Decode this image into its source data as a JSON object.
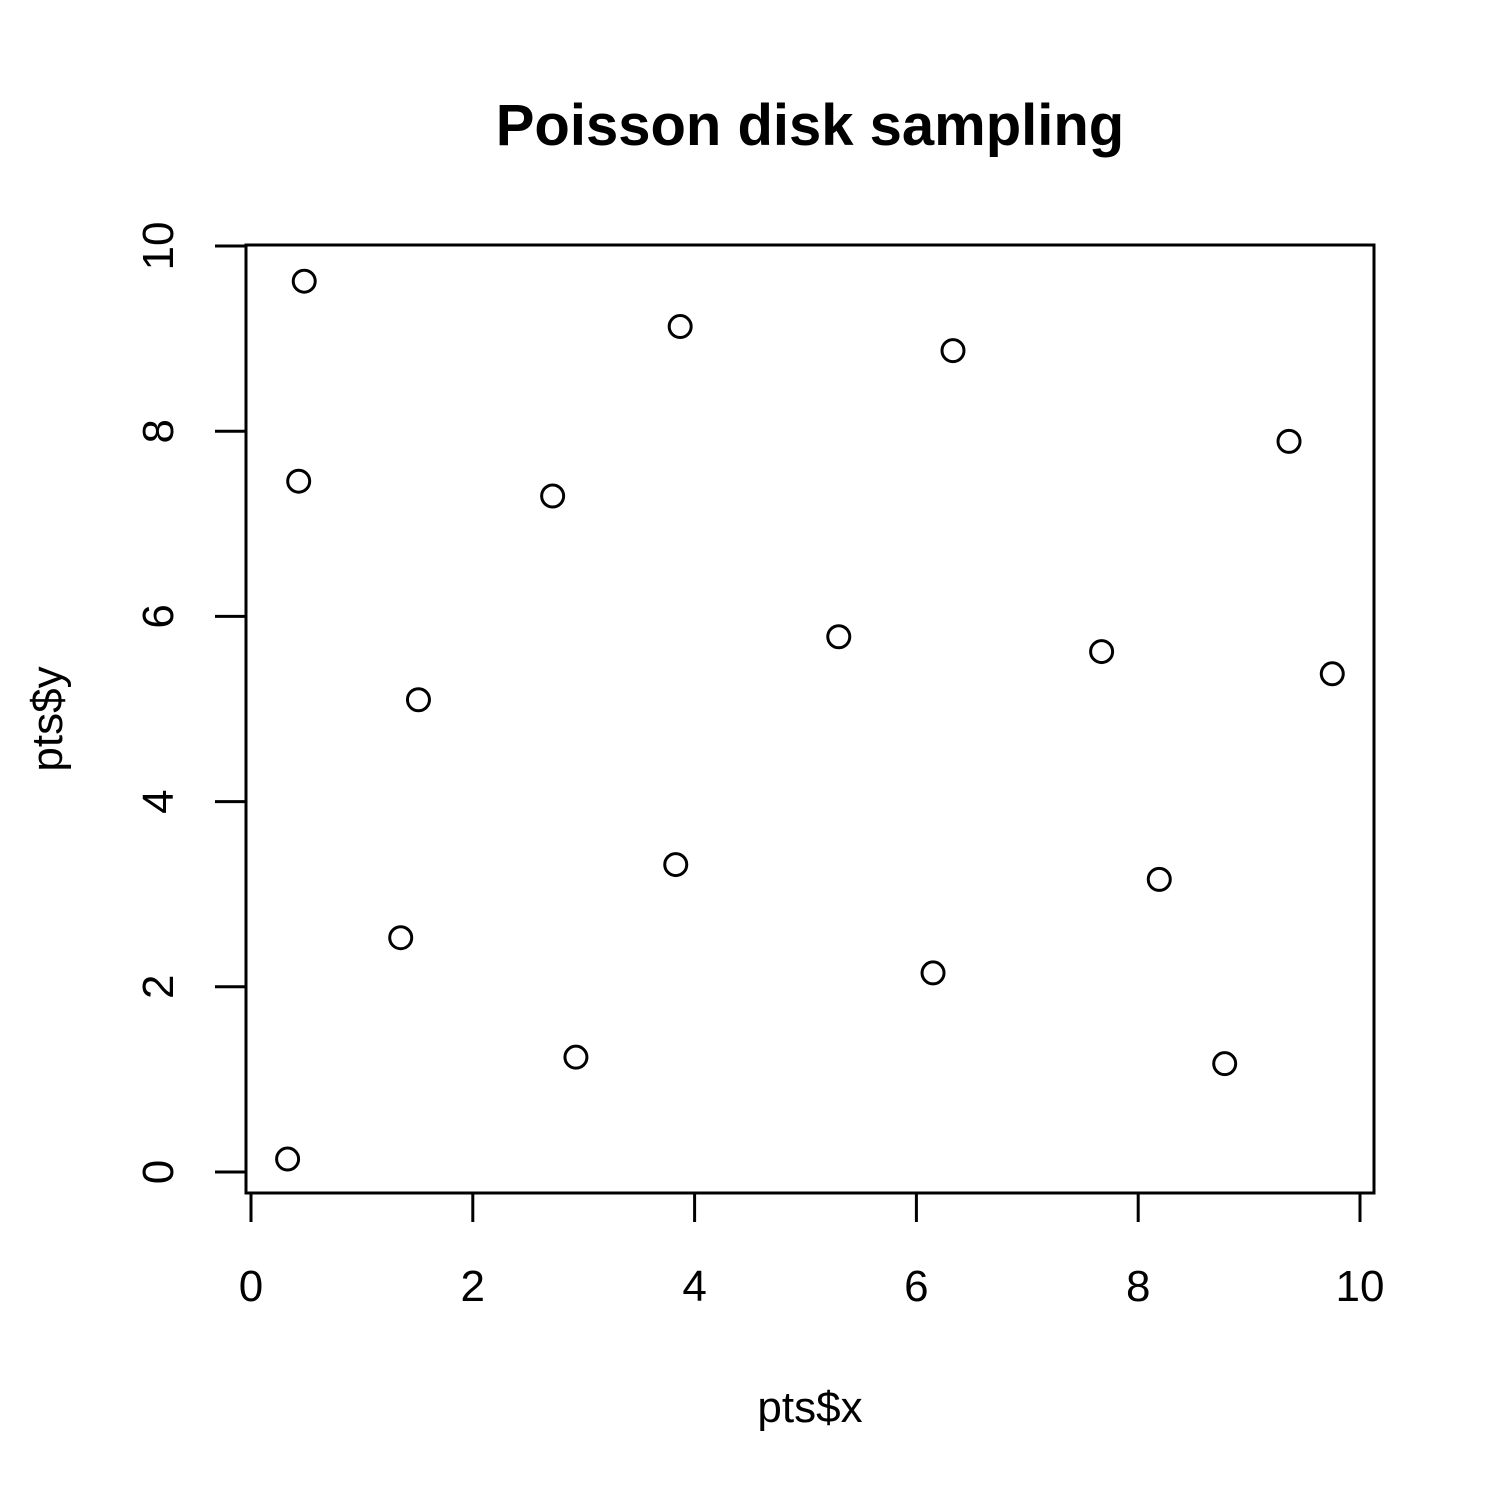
{
  "chart_data": {
    "type": "scatter",
    "title": "Poisson disk sampling",
    "xlabel": "pts$x",
    "ylabel": "pts$y",
    "xlim": [
      0,
      10
    ],
    "ylim": [
      0,
      10
    ],
    "xticks": [
      0,
      2,
      4,
      6,
      8,
      10
    ],
    "yticks": [
      0,
      2,
      4,
      6,
      8,
      10
    ],
    "grid": false,
    "marker": "open-circle",
    "points": [
      {
        "x": 0.33,
        "y": 0.14
      },
      {
        "x": 0.48,
        "y": 9.62
      },
      {
        "x": 0.43,
        "y": 7.46
      },
      {
        "x": 1.35,
        "y": 2.53
      },
      {
        "x": 1.51,
        "y": 5.1
      },
      {
        "x": 2.72,
        "y": 7.3
      },
      {
        "x": 2.93,
        "y": 1.24
      },
      {
        "x": 3.83,
        "y": 3.32
      },
      {
        "x": 3.87,
        "y": 9.13
      },
      {
        "x": 5.3,
        "y": 5.78
      },
      {
        "x": 6.15,
        "y": 2.15
      },
      {
        "x": 6.33,
        "y": 8.87
      },
      {
        "x": 7.67,
        "y": 5.62
      },
      {
        "x": 8.19,
        "y": 3.16
      },
      {
        "x": 8.78,
        "y": 1.17
      },
      {
        "x": 9.36,
        "y": 7.89
      },
      {
        "x": 9.75,
        "y": 5.38
      }
    ]
  }
}
